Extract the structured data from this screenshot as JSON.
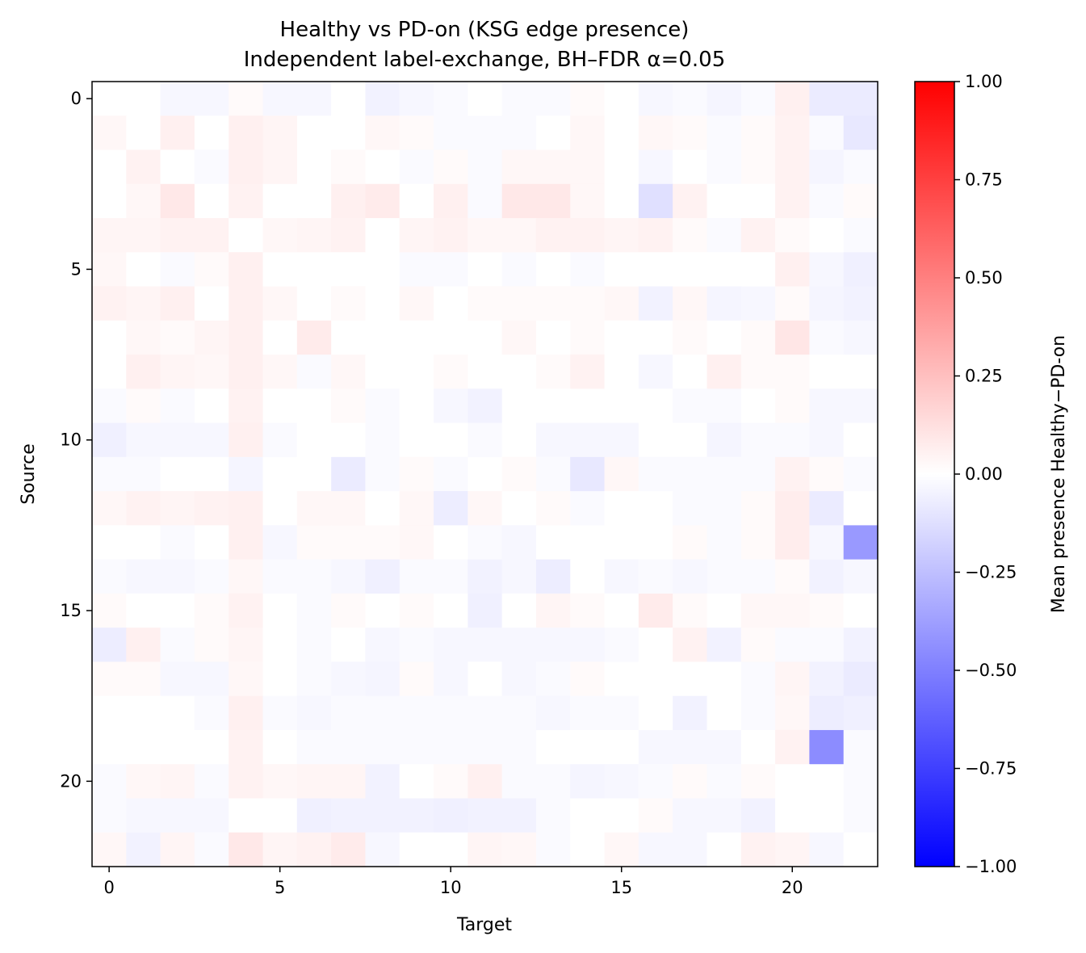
{
  "chart_data": {
    "type": "heatmap",
    "title_line1": "Healthy vs PD-on (KSG edge presence)",
    "title_line2": "Independent label-exchange, BH–FDR α=0.05",
    "xlabel": "Target",
    "ylabel": "Source",
    "colorbar_label": "Mean presence Healthy−PD-on",
    "x_ticks": [
      "0",
      "5",
      "10",
      "15",
      "20"
    ],
    "y_ticks": [
      "0",
      "5",
      "10",
      "15",
      "20"
    ],
    "colorbar_ticks": [
      "1.00",
      "0.75",
      "0.50",
      "0.25",
      "0.00",
      "−0.25",
      "−0.50",
      "−0.75",
      "−1.00"
    ],
    "vmin": -1.0,
    "vmax": 1.0,
    "colormap": "bwr",
    "n_rows": 23,
    "n_cols": 23,
    "values": [
      [
        0.0,
        0.0,
        -0.03,
        -0.03,
        0.02,
        -0.03,
        -0.03,
        0.0,
        -0.05,
        -0.03,
        -0.02,
        0.0,
        -0.02,
        -0.02,
        0.02,
        0.0,
        -0.03,
        -0.02,
        -0.04,
        -0.02,
        0.06,
        -0.08,
        -0.08
      ],
      [
        0.03,
        0.0,
        0.06,
        0.0,
        0.06,
        0.04,
        0.0,
        0.0,
        0.03,
        0.02,
        -0.02,
        -0.02,
        -0.02,
        0.0,
        0.03,
        0.0,
        0.03,
        0.02,
        -0.02,
        0.02,
        0.05,
        -0.02,
        -0.09
      ],
      [
        0.0,
        0.05,
        0.0,
        -0.02,
        0.06,
        0.04,
        0.0,
        0.02,
        0.0,
        -0.02,
        0.02,
        -0.02,
        0.03,
        0.03,
        0.03,
        0.0,
        -0.03,
        0.0,
        -0.02,
        0.02,
        0.05,
        -0.04,
        -0.02
      ],
      [
        0.0,
        0.03,
        0.09,
        0.0,
        0.05,
        0.0,
        0.0,
        0.06,
        0.08,
        0.0,
        0.06,
        -0.02,
        0.09,
        0.09,
        0.03,
        0.0,
        -0.12,
        0.05,
        0.0,
        0.0,
        0.05,
        -0.02,
        0.02
      ],
      [
        0.04,
        0.04,
        0.05,
        0.05,
        0.0,
        0.03,
        0.04,
        0.05,
        0.0,
        0.04,
        0.05,
        0.03,
        0.03,
        0.05,
        0.05,
        0.04,
        0.05,
        0.02,
        -0.02,
        0.05,
        0.02,
        0.0,
        -0.02
      ],
      [
        0.03,
        0.0,
        -0.02,
        0.02,
        0.06,
        0.0,
        0.0,
        0.0,
        0.0,
        -0.02,
        -0.02,
        0.0,
        -0.02,
        0.0,
        -0.02,
        0.0,
        0.0,
        0.0,
        0.0,
        0.0,
        0.06,
        -0.03,
        -0.06
      ],
      [
        0.05,
        0.04,
        0.06,
        0.0,
        0.06,
        0.03,
        0.0,
        0.02,
        0.0,
        0.03,
        0.0,
        0.02,
        0.02,
        0.02,
        0.02,
        0.03,
        -0.05,
        0.03,
        -0.04,
        -0.03,
        0.02,
        -0.04,
        -0.05
      ],
      [
        0.0,
        0.03,
        0.02,
        0.04,
        0.06,
        0.0,
        0.08,
        0.0,
        0.0,
        0.0,
        0.0,
        0.0,
        0.03,
        0.0,
        0.02,
        0.0,
        0.0,
        0.02,
        0.0,
        0.02,
        0.1,
        -0.02,
        -0.03
      ],
      [
        0.0,
        0.06,
        0.04,
        0.03,
        0.06,
        0.03,
        -0.02,
        0.03,
        0.0,
        0.0,
        0.02,
        0.0,
        0.0,
        0.02,
        0.05,
        0.0,
        -0.03,
        0.0,
        0.06,
        0.02,
        0.02,
        0.0,
        0.0
      ],
      [
        -0.02,
        0.02,
        -0.02,
        0.0,
        0.05,
        0.0,
        0.0,
        0.02,
        -0.02,
        0.0,
        -0.03,
        -0.05,
        0.0,
        0.0,
        0.0,
        0.0,
        0.0,
        -0.02,
        -0.02,
        0.0,
        0.02,
        -0.03,
        -0.03
      ],
      [
        -0.06,
        -0.03,
        -0.03,
        -0.03,
        0.06,
        -0.02,
        0.0,
        0.0,
        -0.02,
        0.0,
        0.0,
        -0.02,
        0.0,
        -0.03,
        -0.03,
        -0.03,
        0.0,
        0.0,
        -0.04,
        -0.02,
        -0.02,
        -0.03,
        0.0
      ],
      [
        -0.02,
        -0.02,
        0.0,
        0.0,
        -0.04,
        0.0,
        0.0,
        -0.08,
        -0.02,
        0.02,
        -0.02,
        0.0,
        0.02,
        -0.02,
        -0.09,
        0.03,
        -0.02,
        -0.02,
        -0.02,
        -0.02,
        0.05,
        0.02,
        -0.02
      ],
      [
        0.03,
        0.05,
        0.04,
        0.05,
        0.06,
        0.0,
        0.03,
        0.03,
        0.0,
        0.03,
        -0.07,
        0.03,
        0.0,
        0.02,
        -0.02,
        0.0,
        0.0,
        -0.02,
        -0.02,
        0.02,
        0.07,
        -0.08,
        0.0
      ],
      [
        0.0,
        0.0,
        -0.02,
        0.0,
        0.06,
        -0.03,
        0.02,
        0.02,
        0.02,
        0.03,
        0.0,
        -0.02,
        -0.03,
        0.0,
        0.0,
        0.0,
        0.0,
        0.02,
        -0.02,
        0.02,
        0.07,
        -0.03,
        -0.4
      ],
      [
        -0.02,
        -0.03,
        -0.03,
        -0.02,
        0.03,
        -0.02,
        -0.02,
        -0.03,
        -0.06,
        -0.02,
        -0.02,
        -0.05,
        -0.03,
        -0.07,
        0.0,
        -0.03,
        -0.02,
        -0.03,
        -0.02,
        -0.02,
        0.02,
        -0.05,
        -0.03
      ],
      [
        0.02,
        0.0,
        0.0,
        0.02,
        0.05,
        0.0,
        -0.02,
        0.02,
        0.0,
        0.02,
        0.0,
        -0.06,
        0.0,
        0.04,
        0.02,
        0.0,
        0.08,
        0.02,
        0.0,
        0.03,
        0.03,
        0.02,
        0.0
      ],
      [
        -0.07,
        0.06,
        -0.02,
        0.02,
        0.04,
        0.0,
        -0.02,
        0.0,
        -0.03,
        -0.02,
        -0.03,
        -0.03,
        -0.03,
        -0.03,
        -0.03,
        -0.02,
        0.0,
        0.05,
        -0.05,
        0.02,
        -0.02,
        -0.02,
        -0.05
      ],
      [
        0.02,
        0.02,
        -0.03,
        -0.03,
        0.03,
        0.0,
        -0.02,
        -0.03,
        -0.04,
        0.02,
        -0.03,
        0.0,
        -0.03,
        -0.02,
        0.02,
        0.0,
        0.0,
        0.0,
        0.0,
        -0.02,
        0.04,
        -0.05,
        -0.08
      ],
      [
        0.0,
        0.0,
        0.0,
        -0.02,
        0.06,
        -0.02,
        -0.03,
        -0.02,
        -0.02,
        -0.02,
        -0.02,
        -0.02,
        -0.02,
        -0.03,
        -0.02,
        -0.02,
        0.0,
        -0.05,
        0.0,
        -0.02,
        0.03,
        -0.07,
        -0.06
      ],
      [
        0.0,
        0.0,
        0.0,
        0.0,
        0.05,
        0.0,
        -0.02,
        -0.02,
        -0.02,
        -0.02,
        -0.02,
        -0.02,
        -0.02,
        0.0,
        0.0,
        0.0,
        -0.03,
        -0.03,
        -0.03,
        0.0,
        0.05,
        -0.45,
        -0.02
      ],
      [
        -0.02,
        0.03,
        0.04,
        -0.02,
        0.05,
        0.03,
        0.04,
        0.04,
        -0.05,
        0.0,
        0.02,
        0.06,
        -0.02,
        -0.02,
        -0.04,
        -0.03,
        -0.02,
        0.02,
        -0.02,
        0.02,
        0.0,
        0.0,
        -0.02
      ],
      [
        -0.02,
        -0.03,
        -0.03,
        -0.03,
        0.0,
        0.0,
        -0.06,
        -0.05,
        -0.05,
        -0.05,
        -0.06,
        -0.05,
        -0.05,
        -0.02,
        0.0,
        0.0,
        0.02,
        -0.03,
        -0.03,
        -0.05,
        0.0,
        0.0,
        -0.02
      ],
      [
        0.03,
        -0.05,
        0.04,
        -0.02,
        0.09,
        0.04,
        0.05,
        0.08,
        -0.03,
        0.0,
        0.0,
        0.04,
        0.03,
        -0.02,
        0.0,
        0.03,
        -0.03,
        -0.03,
        0.0,
        0.05,
        0.04,
        -0.03,
        0.0
      ]
    ]
  }
}
